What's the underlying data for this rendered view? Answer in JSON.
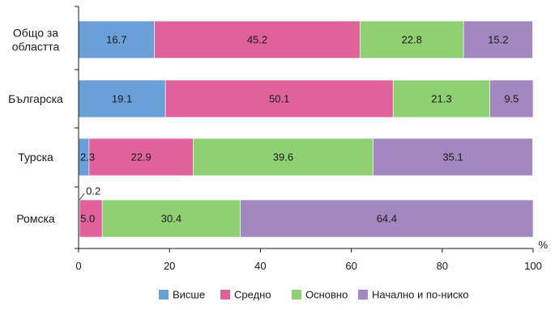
{
  "chart_data": {
    "type": "bar",
    "orientation": "horizontal",
    "stacked": true,
    "categories": [
      "Общо за\nобластта",
      "Българска",
      "Турска",
      "Ромска"
    ],
    "series": [
      {
        "name": "Висше",
        "color": "#6a9fd8",
        "values": [
          16.7,
          19.1,
          2.3,
          0.2
        ]
      },
      {
        "name": "Средно",
        "color": "#e0629a",
        "values": [
          45.2,
          50.1,
          22.9,
          5.0
        ]
      },
      {
        "name": "Основно",
        "color": "#8fd073",
        "values": [
          22.8,
          21.3,
          39.6,
          30.4
        ]
      },
      {
        "name": "Начално и по-ниско",
        "color": "#a287c0",
        "values": [
          15.2,
          9.5,
          35.1,
          64.4
        ]
      }
    ],
    "xlim": [
      0,
      100
    ],
    "xticks": [
      0,
      20,
      40,
      60,
      80,
      100
    ],
    "x_unit": "%",
    "legend_position": "bottom",
    "grid": false
  }
}
